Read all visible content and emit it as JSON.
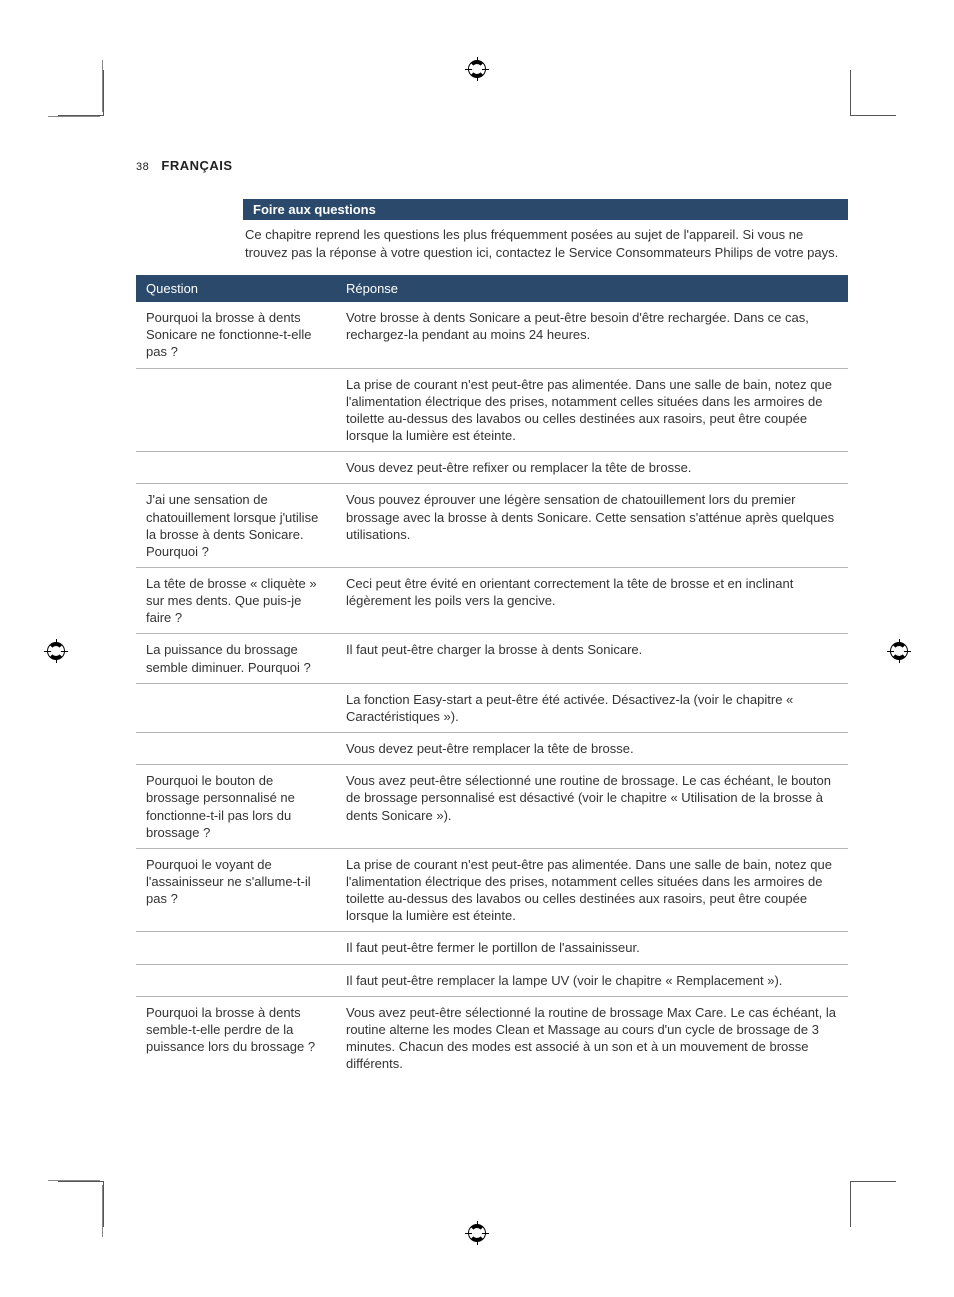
{
  "page_number": "38",
  "language_label": "FRANÇAIS",
  "colors": {
    "bar_bg": "#2b4a6b",
    "bar_fg": "#ffffff",
    "text": "#333333",
    "rule": "#b6b6b6",
    "background": "#ffffff"
  },
  "section_title": "Foire aux questions",
  "intro": "Ce chapitre reprend les questions les plus fréquemment posées au sujet de l'appareil. Si vous ne trouvez pas la réponse à votre question ici, contactez le Service Consommateurs Philips de votre pays.",
  "table": {
    "headers": {
      "question": "Question",
      "answer": "Réponse"
    },
    "rows": [
      {
        "q": "Pourquoi la brosse à dents Sonicare ne fonctionne-t-elle pas ?",
        "a": "Votre brosse à dents Sonicare a peut-être besoin d'être rechargée. Dans ce cas, rechargez-la pendant au moins 24 heures."
      },
      {
        "q": "",
        "a": "La prise de courant n'est peut-être pas alimentée. Dans une salle de bain, notez que l'alimentation électrique des prises, notamment celles situées dans les armoires de toilette au-dessus des lavabos ou celles destinées aux rasoirs, peut être coupée lorsque la lumière est éteinte."
      },
      {
        "q": "",
        "a": "Vous devez peut-être refixer ou remplacer la tête de brosse."
      },
      {
        "q": "J'ai une sensation de chatouillement lorsque j'utilise la brosse à dents Sonicare. Pourquoi ?",
        "a": "Vous pouvez éprouver une légère sensation de chatouillement lors du premier brossage avec la brosse à dents Sonicare. Cette sensation s'atténue après quelques utilisations."
      },
      {
        "q": "La tête de brosse « cliquète » sur mes dents. Que puis-je faire ?",
        "a": "Ceci peut être évité en orientant correctement la tête de brosse et en inclinant légèrement les poils vers la gencive."
      },
      {
        "q": "La puissance du brossage semble diminuer. Pourquoi ?",
        "a": "Il faut peut-être charger la brosse à dents Sonicare."
      },
      {
        "q": "",
        "a": "La fonction Easy-start a peut-être été activée. Désactivez-la (voir le chapitre « Caractéristiques »)."
      },
      {
        "q": "",
        "a": "Vous devez peut-être remplacer la tête de brosse."
      },
      {
        "q": "Pourquoi le bouton de brossage personnalisé ne fonctionne-t-il pas lors du brossage ?",
        "a": "Vous avez peut-être sélectionné une routine de brossage. Le cas échéant, le bouton de brossage personnalisé est désactivé (voir le chapitre « Utilisation de la brosse à dents Sonicare »)."
      },
      {
        "q": "Pourquoi le voyant de l'assainisseur ne s'allume-t-il pas ?",
        "a": "La prise de courant n'est peut-être pas alimentée. Dans une salle de bain, notez que l'alimentation électrique des prises, notamment celles situées dans les armoires de toilette au-dessus des lavabos ou celles destinées aux rasoirs, peut être coupée lorsque la lumière est éteinte."
      },
      {
        "q": "",
        "a": "Il faut peut-être fermer le portillon de l'assainisseur."
      },
      {
        "q": "",
        "a": "Il faut peut-être remplacer la lampe UV (voir le chapitre « Remplacement »)."
      },
      {
        "q": "Pourquoi la brosse à dents semble-t-elle perdre de la puissance lors du brossage ?",
        "a": "Vous avez peut-être sélectionné la routine de brossage Max Care. Le cas échéant, la routine alterne les modes Clean et Massage au cours d'un cycle de brossage de 3 minutes. Chacun des modes est associé à un son et à un mouvement de brosse différents."
      }
    ]
  }
}
